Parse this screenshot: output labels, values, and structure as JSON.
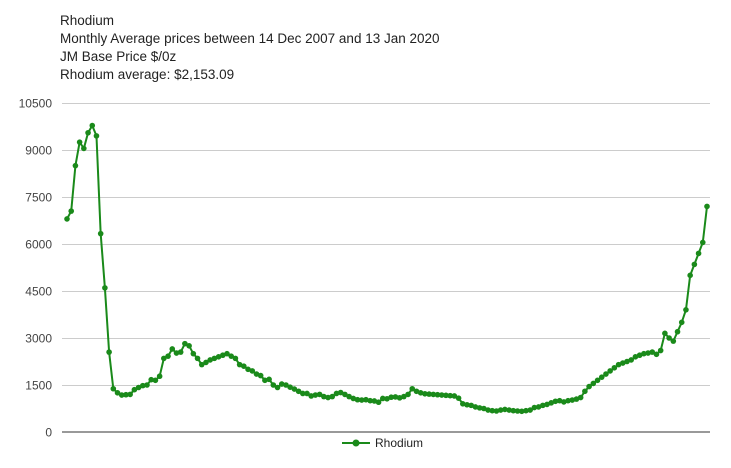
{
  "chart_data": {
    "type": "line",
    "title": "Rhodium",
    "subtitle_lines": [
      "Monthly Average prices between 14 Dec 2007 and 13 Jan 2020",
      "JM Base Price $/0z",
      "Rhodium average: $2,153.09"
    ],
    "xlabel": "",
    "ylabel": "",
    "ylim": [
      0,
      10500
    ],
    "yticks": [
      "10500",
      "9000",
      "7500",
      "6000",
      "4500",
      "3000",
      "1500",
      "0"
    ],
    "ytick_values": [
      10500,
      9000,
      7500,
      6000,
      4500,
      3000,
      1500,
      0
    ],
    "grid": true,
    "legend_position": "bottom",
    "series": [
      {
        "name": "Rhodium",
        "color": "#1a8a1a",
        "values": [
          6800,
          7050,
          8500,
          9250,
          9050,
          9550,
          9780,
          9450,
          6330,
          4600,
          2550,
          1380,
          1250,
          1180,
          1190,
          1200,
          1350,
          1420,
          1480,
          1500,
          1670,
          1650,
          1780,
          2350,
          2420,
          2650,
          2520,
          2550,
          2820,
          2750,
          2500,
          2350,
          2150,
          2220,
          2300,
          2350,
          2400,
          2450,
          2500,
          2420,
          2350,
          2150,
          2100,
          2000,
          1950,
          1850,
          1800,
          1650,
          1680,
          1500,
          1420,
          1530,
          1500,
          1430,
          1370,
          1300,
          1230,
          1230,
          1150,
          1180,
          1200,
          1130,
          1100,
          1130,
          1230,
          1260,
          1200,
          1130,
          1070,
          1030,
          1020,
          1030,
          1000,
          990,
          950,
          1070,
          1060,
          1110,
          1120,
          1090,
          1130,
          1200,
          1380,
          1300,
          1250,
          1220,
          1210,
          1200,
          1190,
          1180,
          1170,
          1160,
          1150,
          1080,
          900,
          870,
          850,
          800,
          770,
          750,
          700,
          680,
          670,
          700,
          720,
          700,
          680,
          670,
          660,
          680,
          700,
          780,
          800,
          850,
          880,
          930,
          980,
          1000,
          960,
          1000,
          1020,
          1050,
          1100,
          1300,
          1450,
          1550,
          1650,
          1750,
          1850,
          1950,
          2050,
          2150,
          2200,
          2250,
          2300,
          2400,
          2450,
          2500,
          2520,
          2550,
          2480,
          2600,
          3150,
          3000,
          2900,
          3200,
          3500,
          3900,
          5000,
          5350,
          5700,
          6050,
          7200
        ]
      }
    ]
  }
}
